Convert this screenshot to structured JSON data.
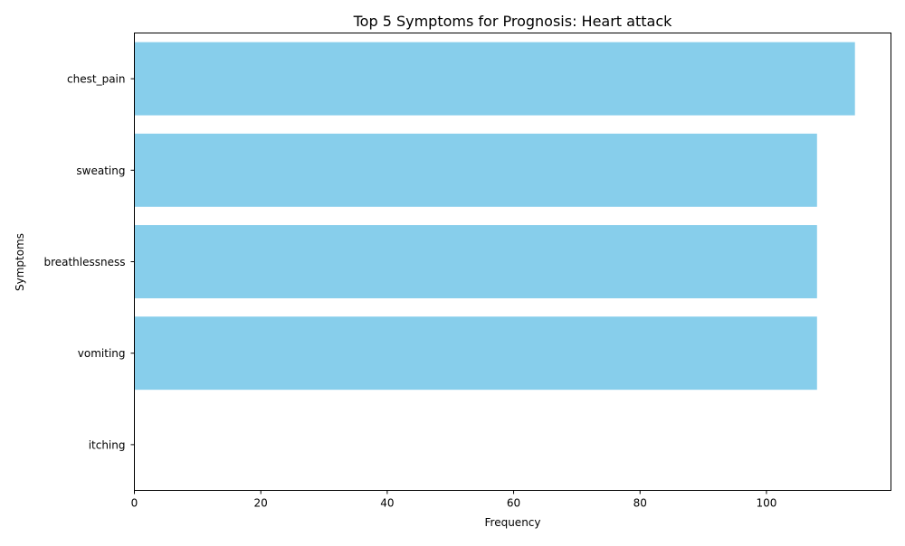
{
  "chart_data": {
    "type": "bar",
    "orientation": "horizontal",
    "title": "Top 5 Symptoms for Prognosis: Heart attack",
    "xlabel": "Frequency",
    "ylabel": "Symptoms",
    "categories": [
      "chest_pain",
      "sweating",
      "breathlessness",
      "vomiting",
      "itching"
    ],
    "values": [
      114,
      108,
      108,
      108,
      0
    ],
    "xlim": [
      0,
      119.7
    ],
    "xticks": [
      0,
      20,
      40,
      60,
      80,
      100
    ],
    "grid": false,
    "legend": "none",
    "bar_color": "#87ceeb"
  }
}
